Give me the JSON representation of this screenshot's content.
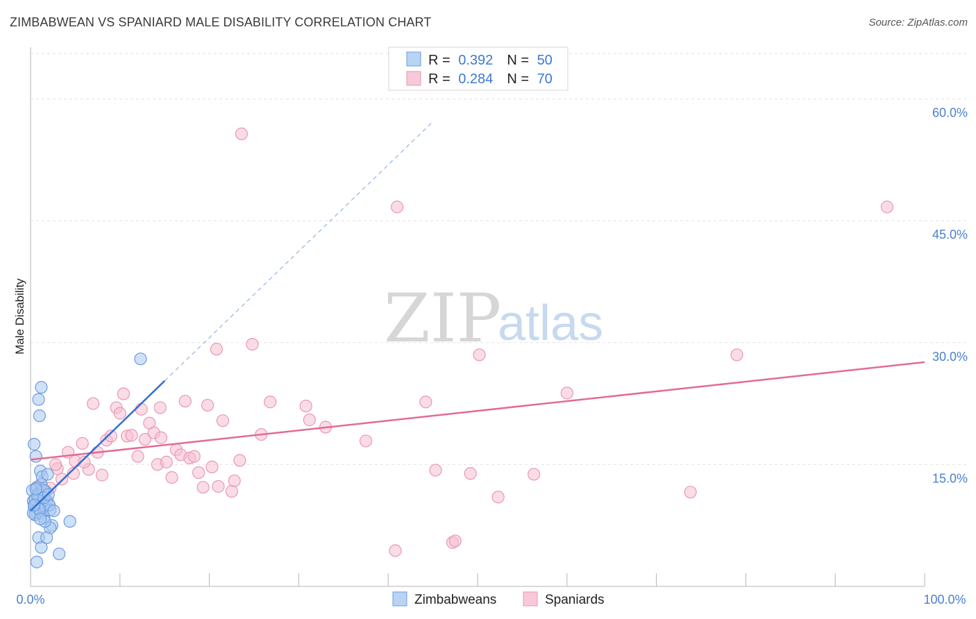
{
  "header": {
    "title": "ZIMBABWEAN VS SPANIARD MALE DISABILITY CORRELATION CHART",
    "source": "Source: ZipAtlas.com"
  },
  "watermark": {
    "zip": "ZIP",
    "atlas": "atlas"
  },
  "colors": {
    "blue": "#4a86d8",
    "blue_fill": "#a8c8f0",
    "pink": "#e36a95",
    "pink_fill": "#f6bfd0",
    "grid": "#dddddd",
    "tick_text": "#4a7fd0"
  },
  "legend_top": {
    "rows": [
      {
        "r_label": "R = ",
        "r_value": "0.392",
        "n_label": "N = ",
        "n_value": "50"
      },
      {
        "r_label": "R = ",
        "r_value": "0.284",
        "n_label": "N = ",
        "n_value": "70"
      }
    ]
  },
  "chart_data": {
    "type": "scatter",
    "title": "ZIMBABWEAN VS SPANIARD MALE DISABILITY CORRELATION CHART",
    "xlabel": "",
    "ylabel": "Male Disability",
    "xlim": [
      0,
      100
    ],
    "ylim": [
      0,
      65
    ],
    "x_tick_labels": [
      "0.0%",
      "100.0%"
    ],
    "y_ticks": [
      15,
      30,
      45,
      60
    ],
    "y_tick_labels": [
      "15.0%",
      "30.0%",
      "45.0%",
      "60.0%"
    ],
    "x_minor_ticks": [
      10,
      20,
      30,
      40,
      50,
      60,
      70,
      80,
      90,
      100
    ],
    "legend_position": "top-center",
    "series": [
      {
        "name": "Zimbabweans",
        "color": "#4a86d8",
        "r": 0.392,
        "n": 50,
        "trend": {
          "x0": 0,
          "y0": 9.3,
          "x1": 15,
          "y1": 25.3,
          "dashed_to_x": 45,
          "dashed_to_y": 57.2
        },
        "points": [
          [
            0.2,
            11.8
          ],
          [
            0.3,
            10.5
          ],
          [
            0.4,
            9.8
          ],
          [
            0.5,
            9.2
          ],
          [
            0.6,
            10.1
          ],
          [
            0.7,
            12.2
          ],
          [
            0.8,
            9.6
          ],
          [
            0.5,
            8.8
          ],
          [
            0.9,
            11.4
          ],
          [
            1.0,
            10.8
          ],
          [
            1.1,
            9.0
          ],
          [
            1.2,
            12.6
          ],
          [
            1.3,
            11.0
          ],
          [
            1.4,
            10.3
          ],
          [
            1.5,
            8.5
          ],
          [
            1.6,
            9.9
          ],
          [
            1.7,
            11.7
          ],
          [
            1.8,
            10.6
          ],
          [
            0.4,
            17.5
          ],
          [
            0.6,
            16.0
          ],
          [
            0.9,
            23.0
          ],
          [
            1.0,
            21.0
          ],
          [
            1.2,
            24.5
          ],
          [
            1.1,
            14.2
          ],
          [
            1.3,
            13.5
          ],
          [
            1.9,
            13.8
          ],
          [
            2.0,
            10.2
          ],
          [
            2.2,
            9.4
          ],
          [
            2.4,
            7.5
          ],
          [
            2.2,
            7.2
          ],
          [
            1.6,
            8.0
          ],
          [
            0.9,
            6.0
          ],
          [
            1.2,
            4.8
          ],
          [
            0.7,
            3.0
          ],
          [
            1.8,
            6.0
          ],
          [
            3.2,
            4.0
          ],
          [
            4.4,
            8.0
          ],
          [
            12.3,
            28.0
          ],
          [
            0.3,
            9.0
          ],
          [
            0.5,
            10.7
          ],
          [
            0.8,
            11.1
          ],
          [
            1.4,
            11.9
          ],
          [
            2.1,
            10.0
          ],
          [
            2.6,
            9.3
          ],
          [
            1.0,
            9.5
          ],
          [
            0.6,
            12.0
          ],
          [
            1.5,
            10.9
          ],
          [
            0.4,
            10.0
          ],
          [
            1.1,
            8.3
          ],
          [
            2.0,
            11.3
          ]
        ]
      },
      {
        "name": "Spaniards",
        "color": "#e36a95",
        "r": 0.284,
        "n": 70,
        "trend": {
          "x0": 0,
          "y0": 15.6,
          "x1": 100,
          "y1": 27.6
        },
        "points": [
          [
            0.8,
            12.0
          ],
          [
            1.5,
            11.8
          ],
          [
            2.2,
            12.1
          ],
          [
            3.0,
            14.5
          ],
          [
            3.5,
            13.2
          ],
          [
            4.2,
            16.5
          ],
          [
            4.8,
            13.9
          ],
          [
            5.0,
            15.4
          ],
          [
            5.8,
            17.6
          ],
          [
            6.5,
            14.4
          ],
          [
            7.0,
            22.5
          ],
          [
            7.5,
            16.5
          ],
          [
            8.0,
            13.7
          ],
          [
            8.5,
            18.0
          ],
          [
            9.0,
            18.5
          ],
          [
            9.6,
            22.0
          ],
          [
            10.0,
            21.3
          ],
          [
            10.4,
            23.7
          ],
          [
            10.8,
            18.5
          ],
          [
            11.3,
            18.6
          ],
          [
            12.0,
            16.0
          ],
          [
            12.4,
            21.8
          ],
          [
            12.8,
            18.1
          ],
          [
            13.3,
            20.1
          ],
          [
            13.8,
            18.9
          ],
          [
            14.2,
            15.0
          ],
          [
            14.6,
            18.3
          ],
          [
            15.2,
            15.3
          ],
          [
            15.8,
            13.4
          ],
          [
            16.3,
            16.8
          ],
          [
            16.8,
            16.2
          ],
          [
            17.3,
            22.8
          ],
          [
            17.8,
            15.8
          ],
          [
            18.3,
            16.0
          ],
          [
            18.8,
            14.0
          ],
          [
            19.3,
            12.2
          ],
          [
            19.8,
            22.3
          ],
          [
            20.3,
            14.7
          ],
          [
            20.8,
            29.2
          ],
          [
            21.0,
            12.3
          ],
          [
            21.5,
            20.4
          ],
          [
            22.5,
            11.7
          ],
          [
            22.8,
            13.0
          ],
          [
            23.4,
            15.5
          ],
          [
            23.6,
            55.7
          ],
          [
            24.8,
            29.8
          ],
          [
            25.8,
            18.7
          ],
          [
            26.8,
            22.7
          ],
          [
            30.8,
            22.2
          ],
          [
            31.2,
            20.5
          ],
          [
            33.0,
            19.6
          ],
          [
            37.5,
            17.9
          ],
          [
            40.8,
            4.4
          ],
          [
            41.0,
            46.7
          ],
          [
            44.2,
            22.7
          ],
          [
            45.3,
            14.3
          ],
          [
            47.2,
            5.4
          ],
          [
            47.5,
            5.6
          ],
          [
            49.2,
            13.9
          ],
          [
            50.2,
            28.5
          ],
          [
            52.3,
            11.0
          ],
          [
            56.3,
            13.8
          ],
          [
            60.0,
            23.8
          ],
          [
            73.8,
            11.6
          ],
          [
            79.0,
            28.5
          ],
          [
            95.8,
            46.7
          ],
          [
            1.2,
            12.5
          ],
          [
            2.8,
            15.0
          ],
          [
            6.0,
            15.3
          ],
          [
            14.5,
            22.0
          ]
        ]
      }
    ]
  },
  "legend_bottom": {
    "items": [
      {
        "label": "Zimbabweans"
      },
      {
        "label": "Spaniards"
      }
    ]
  }
}
